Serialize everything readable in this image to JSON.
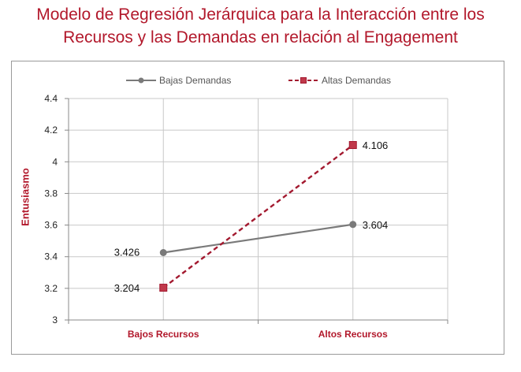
{
  "chart_data": {
    "type": "line",
    "title": "Modelo de Regresión Jerárquica para la Interacción entre los Recursos y las Demandas en relación al Engagement",
    "title_lines": [
      "Modelo de Regresión Jerárquica para la Interacción entre los",
      "Recursos y las Demandas en relación al Engagement"
    ],
    "xlabel": "",
    "ylabel": "Entusiasmo",
    "categories": [
      "Bajos Recursos",
      "Altos Recursos"
    ],
    "ylim": [
      3,
      4.4
    ],
    "yticks": [
      "3",
      "3.2",
      "3.4",
      "3.6",
      "3.8",
      "4",
      "4.2",
      "4.4"
    ],
    "grid": true,
    "legend_position": "top",
    "series": [
      {
        "name": "Bajas Demandas",
        "values": [
          3.426,
          3.604
        ],
        "labels": [
          "3.426",
          "3.604"
        ],
        "color": "#7a7a7a",
        "marker": "circle",
        "dash": "solid"
      },
      {
        "name": "Altas Demandas",
        "values": [
          3.204,
          4.106
        ],
        "labels": [
          "3.204",
          "4.106"
        ],
        "color": "#a3192f",
        "marker": "square",
        "dash": "dashed"
      }
    ]
  },
  "colors": {
    "title": "#b2182b",
    "axis_label": "#b2182b",
    "grid": "#c8c8c8"
  }
}
